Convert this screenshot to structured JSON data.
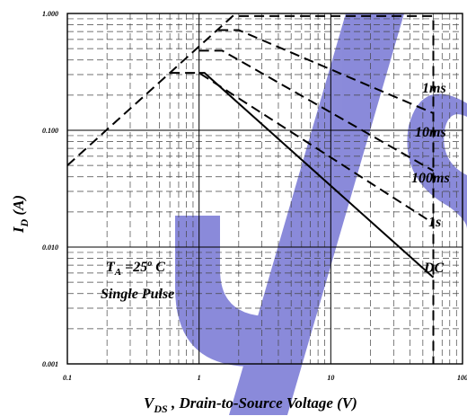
{
  "chart_data": {
    "type": "line",
    "xscale": "log",
    "yscale": "log",
    "xlim": [
      0.1,
      100
    ],
    "ylim": [
      0.001,
      1.0
    ],
    "grid": true,
    "x_ticks": [
      "0.1",
      "1",
      "10",
      "100"
    ],
    "y_ticks": [
      "0.001",
      "0.010",
      "0.100",
      "1.000"
    ],
    "xlabel_main": "V",
    "xlabel_sub": "DS",
    "xlabel_rest": " , Drain-to-Source Voltage (V)",
    "ylabel_main": "I",
    "ylabel_sub": "D",
    "ylabel_rest": " (A)",
    "annotation": {
      "line1_pre": "T",
      "line1_sub": "A",
      "line1_mid": " =25",
      "line1_sup": "o",
      "line1_post": " C",
      "line2": "Single Pulse"
    },
    "accent_color": "#6a6ad0",
    "series": [
      {
        "name": "1ms",
        "style": "dashed",
        "x": [
          0.1,
          1.8,
          60,
          60
        ],
        "y": [
          0.05,
          0.95,
          0.95,
          0.001
        ]
      },
      {
        "name": "10ms",
        "style": "dashed",
        "x": [
          1.4,
          2.0,
          60
        ],
        "y": [
          0.72,
          0.72,
          0.14
        ]
      },
      {
        "name": "100ms",
        "style": "dashed",
        "x": [
          1.0,
          1.5,
          60
        ],
        "y": [
          0.48,
          0.48,
          0.045
        ]
      },
      {
        "name": "1s",
        "style": "dashed",
        "x": [
          0.6,
          1.0,
          60
        ],
        "y": [
          0.31,
          0.31,
          0.016
        ]
      },
      {
        "name": "DC",
        "style": "solid",
        "x": [
          1.0,
          1.1,
          60
        ],
        "y": [
          0.31,
          0.31,
          0.0055
        ]
      }
    ]
  }
}
